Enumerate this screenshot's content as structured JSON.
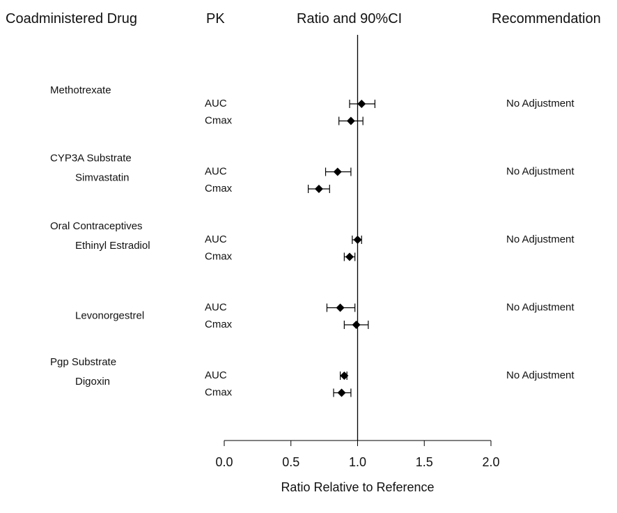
{
  "headers": {
    "drug": "Coadministered Drug",
    "pk": "PK",
    "ratio": "Ratio and 90%CI",
    "recommendation": "Recommendation"
  },
  "chart_data": {
    "type": "forest",
    "xlabel": "Ratio Relative to Reference",
    "xlim": [
      0.0,
      2.0
    ],
    "xticks": [
      "0.0",
      "0.5",
      "1.0",
      "1.5",
      "2.0"
    ],
    "reference_line": 1.0,
    "groups": [
      {
        "labels": [
          {
            "text": "Methotrexate",
            "indent": false
          }
        ],
        "recommendation": "No Adjustment",
        "rows": [
          {
            "pk": "AUC",
            "est": 1.03,
            "lo": 0.94,
            "hi": 1.13
          },
          {
            "pk": "Cmax",
            "est": 0.95,
            "lo": 0.86,
            "hi": 1.04
          }
        ]
      },
      {
        "labels": [
          {
            "text": "CYP3A Substrate",
            "indent": false
          },
          {
            "text": "Simvastatin",
            "indent": true
          }
        ],
        "recommendation": "No Adjustment",
        "rows": [
          {
            "pk": "AUC",
            "est": 0.85,
            "lo": 0.76,
            "hi": 0.95
          },
          {
            "pk": "Cmax",
            "est": 0.71,
            "lo": 0.63,
            "hi": 0.79
          }
        ]
      },
      {
        "labels": [
          {
            "text": "Oral Contraceptives",
            "indent": false
          },
          {
            "text": "Ethinyl Estradiol",
            "indent": true
          }
        ],
        "recommendation": "No Adjustment",
        "rows": [
          {
            "pk": "AUC",
            "est": 1.0,
            "lo": 0.96,
            "hi": 1.03
          },
          {
            "pk": "Cmax",
            "est": 0.94,
            "lo": 0.9,
            "hi": 0.98
          }
        ]
      },
      {
        "labels": [
          {
            "text": "Levonorgestrel",
            "indent": true
          }
        ],
        "recommendation": "No Adjustment",
        "rows": [
          {
            "pk": "AUC",
            "est": 0.87,
            "lo": 0.77,
            "hi": 0.98
          },
          {
            "pk": "Cmax",
            "est": 0.99,
            "lo": 0.9,
            "hi": 1.08
          }
        ]
      },
      {
        "labels": [
          {
            "text": "Pgp Substrate",
            "indent": false
          },
          {
            "text": "Digoxin",
            "indent": true
          }
        ],
        "recommendation": "No Adjustment",
        "rows": [
          {
            "pk": "AUC",
            "est": 0.9,
            "lo": 0.87,
            "hi": 0.92
          },
          {
            "pk": "Cmax",
            "est": 0.88,
            "lo": 0.82,
            "hi": 0.95
          }
        ]
      }
    ]
  }
}
